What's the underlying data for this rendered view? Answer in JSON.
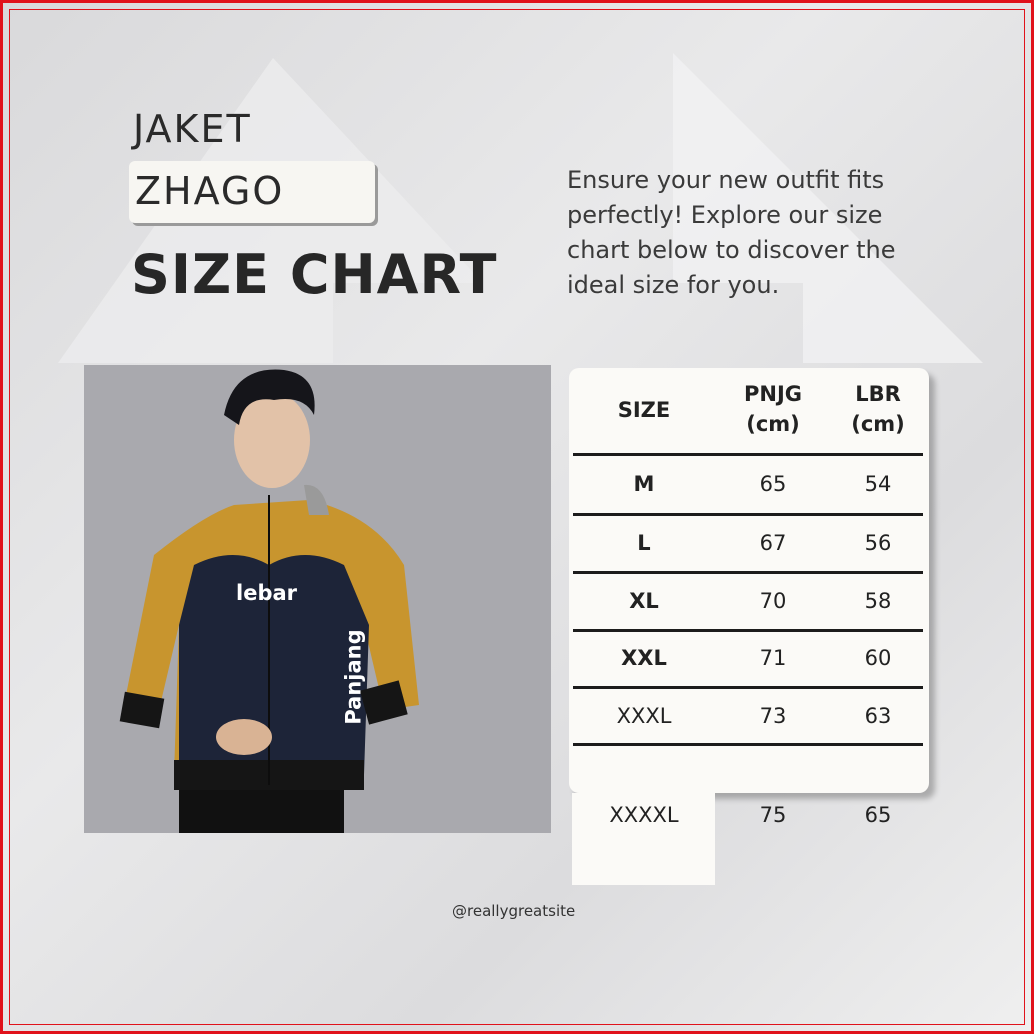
{
  "title": {
    "line1": "JAKET",
    "line2": "ZHAGO",
    "line3": "SIZE CHART"
  },
  "description": "Ensure your new outfit fits perfectly! Explore our size chart below to discover the ideal size for you.",
  "photo": {
    "label_width": "lebar",
    "label_length": "Panjang"
  },
  "table": {
    "headers": {
      "size": "SIZE",
      "length": "PNJG",
      "length_unit": "(cm)",
      "width": "LBR",
      "width_unit": "(cm)"
    },
    "rows": [
      {
        "size": "M",
        "length": "65",
        "width": "54"
      },
      {
        "size": "L",
        "length": "67",
        "width": "56"
      },
      {
        "size": "XL",
        "length": "70",
        "width": "58"
      },
      {
        "size": "XXL",
        "length": "71",
        "width": "60"
      },
      {
        "size": "XXXL",
        "length": "73",
        "width": "63"
      },
      {
        "size": "XXXXL",
        "length": "75",
        "width": "65"
      }
    ]
  },
  "footer": "@reallygreatsite",
  "colors": {
    "border": "#e0121b",
    "jacket_mustard": "#c8952e",
    "jacket_navy": "#1d2438"
  }
}
